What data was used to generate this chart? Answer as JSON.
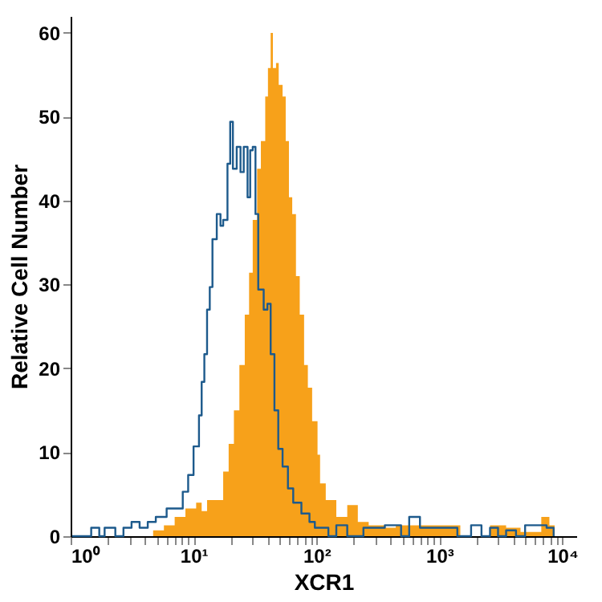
{
  "chart_data": {
    "type": "step",
    "xlabel": "XCR1",
    "ylabel": "Relative Cell Number",
    "log": "x",
    "xlim": [
      1,
      13000
    ],
    "ylim": [
      0,
      62
    ],
    "xticks": [
      {
        "value": 1,
        "label": "10⁰"
      },
      {
        "value": 2,
        "label": null
      },
      {
        "value": 3,
        "label": null
      },
      {
        "value": 4,
        "label": null
      },
      {
        "value": 5,
        "label": null
      },
      {
        "value": 6,
        "label": null
      },
      {
        "value": 7,
        "label": null
      },
      {
        "value": 8,
        "label": null
      },
      {
        "value": 9,
        "label": null
      },
      {
        "value": 10,
        "label": "10¹"
      },
      {
        "value": 20,
        "label": null
      },
      {
        "value": 30,
        "label": null
      },
      {
        "value": 40,
        "label": null
      },
      {
        "value": 50,
        "label": null
      },
      {
        "value": 60,
        "label": null
      },
      {
        "value": 70,
        "label": null
      },
      {
        "value": 80,
        "label": null
      },
      {
        "value": 90,
        "label": null
      },
      {
        "value": 100,
        "label": "10²"
      },
      {
        "value": 200,
        "label": null
      },
      {
        "value": 300,
        "label": null
      },
      {
        "value": 400,
        "label": null
      },
      {
        "value": 500,
        "label": null
      },
      {
        "value": 600,
        "label": null
      },
      {
        "value": 700,
        "label": null
      },
      {
        "value": 800,
        "label": null
      },
      {
        "value": 900,
        "label": null
      },
      {
        "value": 1000,
        "label": "10³"
      },
      {
        "value": 2000,
        "label": null
      },
      {
        "value": 3000,
        "label": null
      },
      {
        "value": 4000,
        "label": null
      },
      {
        "value": 5000,
        "label": null
      },
      {
        "value": 6000,
        "label": null
      },
      {
        "value": 7000,
        "label": null
      },
      {
        "value": 8000,
        "label": null
      },
      {
        "value": 9000,
        "label": null
      },
      {
        "value": 10000,
        "label": "10⁴"
      }
    ],
    "yticks": [
      0,
      10,
      20,
      30,
      40,
      50,
      60
    ],
    "series": [
      {
        "type": "area",
        "color": "#f7a11a",
        "x": [
          4.24,
          4.69,
          5.74,
          7.02,
          8.59,
          10.5,
          11.64,
          12.88,
          15.7,
          17.42,
          19.3,
          21.3,
          23.6,
          26.1,
          28.3,
          30.3,
          32.9,
          35.3,
          38.3,
          40.3,
          42.4,
          44.2,
          46.9,
          49.3,
          53.0,
          56.2,
          59.7,
          63.5,
          68.1,
          73.1,
          79.3,
          85.1,
          92.2,
          102,
          107,
          119,
          145,
          178,
          217,
          266,
          360,
          442,
          809,
          1094,
          1480,
          2582,
          3490,
          4570,
          6745,
          7850,
          8670
        ],
        "values": [
          0,
          0.7,
          1.3,
          2.3,
          3.3,
          4,
          3,
          4.3,
          4.3,
          7.7,
          11,
          15,
          20.4,
          26.4,
          31.4,
          37.7,
          43.8,
          47.1,
          52.4,
          55.8,
          60,
          55.8,
          56.4,
          53.8,
          52.4,
          47.1,
          40.4,
          38.4,
          31,
          26.4,
          20.4,
          17.7,
          13.7,
          9.7,
          6.3,
          4.3,
          2.3,
          3.7,
          1.7,
          1.3,
          1.0,
          1.3,
          1.3,
          1.3,
          0,
          1.3,
          1.0,
          0.5,
          2.3,
          1.3,
          0
        ]
      },
      {
        "type": "step",
        "color": "#1d5a8c",
        "x": [
          1.03,
          1.47,
          1.71,
          1.89,
          2.31,
          2.69,
          3.13,
          3.64,
          4.24,
          4.93,
          6.04,
          7.02,
          8.17,
          9.04,
          10.0,
          11.07,
          11.64,
          12.24,
          12.88,
          13.55,
          14.25,
          15.45,
          16.56,
          17.42,
          18.88,
          19.87,
          20.9,
          22.44,
          24.1,
          25.6,
          27.5,
          28.9,
          30.3,
          31.9,
          33.6,
          37.2,
          39.9,
          42.4,
          45.5,
          48.9,
          53.0,
          58.6,
          64.7,
          75.4,
          87.7,
          97,
          125,
          145,
          178,
          241,
          360,
          488,
          568,
          695,
          894,
          1094,
          1400,
          1811,
          2200,
          2582,
          3000,
          3490,
          4200,
          4980,
          6080,
          7450,
          8500
        ],
        "values": [
          0,
          1.0,
          0,
          1.0,
          0,
          1.0,
          1.7,
          1.0,
          1.7,
          2.3,
          3.3,
          3.3,
          5.3,
          7.3,
          10.7,
          14.4,
          18.4,
          21.7,
          27,
          29.7,
          35.4,
          38.4,
          37,
          37.7,
          44.4,
          49.4,
          43.8,
          46.4,
          43.4,
          46.4,
          40.4,
          46,
          46.4,
          38.4,
          29.4,
          27,
          27.7,
          21.7,
          15,
          10.4,
          8.3,
          5.7,
          4,
          2.7,
          1.7,
          1.0,
          0,
          1.3,
          0,
          1.0,
          1.3,
          0,
          2.3,
          1.0,
          1.0,
          1.0,
          0,
          1.3,
          0,
          1.0,
          0,
          0.7,
          0,
          1.3,
          1.3,
          1.0,
          0
        ]
      }
    ]
  }
}
